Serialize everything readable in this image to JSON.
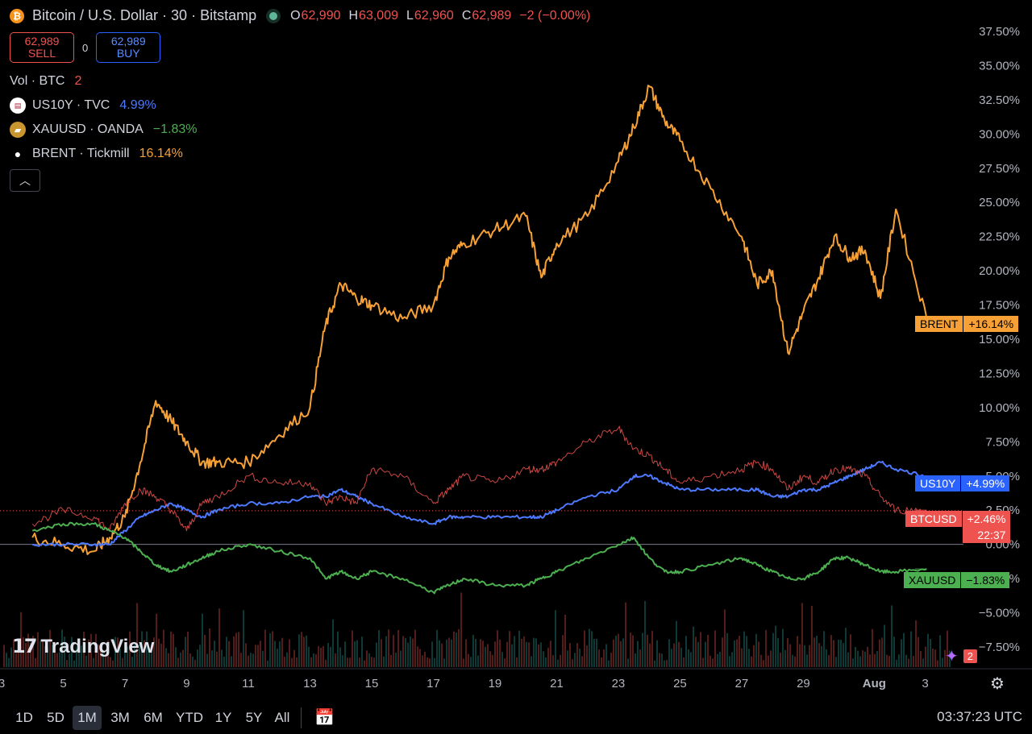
{
  "header": {
    "symbol_icon": "bitcoin-icon",
    "title": "Bitcoin / U.S. Dollar · 30 · Bitstamp",
    "open_label": "O",
    "open": "62,990",
    "high_label": "H",
    "high": "63,009",
    "low_label": "L",
    "low": "62,960",
    "close_label": "C",
    "close": "62,989",
    "change": "−2 (−0.00%)"
  },
  "trade": {
    "sell_price": "62,989",
    "sell_label": "SELL",
    "spread": "0",
    "buy_price": "62,989",
    "buy_label": "BUY"
  },
  "legend": {
    "volume": {
      "label": "Vol · BTC",
      "value": "2"
    },
    "series": [
      {
        "label": "US10Y · TVC",
        "value": "4.99%",
        "color": "#4d79ff",
        "icon": "us-flag-icon"
      },
      {
        "label": "XAUUSD · OANDA",
        "value": "−1.83%",
        "color": "#4caf50",
        "icon": "gold-bars-icon"
      },
      {
        "label": "BRENT · Tickmill",
        "value": "16.14%",
        "color": "#f7a035",
        "icon": "oil-drop-icon"
      }
    ]
  },
  "price_tags": [
    {
      "name": "BRENT",
      "value": "+16.14%",
      "color": "#f7a035",
      "text_color": "#000"
    },
    {
      "name": "US10Y",
      "value": "+4.99%",
      "color": "#2962ff",
      "text_color": "#fff"
    },
    {
      "name": "BTCUSD",
      "value": "+2.46%",
      "sub": "22:37",
      "color": "#ef5350",
      "text_color": "#fff"
    },
    {
      "name": "XAUUSD",
      "value": "−1.83%",
      "color": "#4caf50",
      "text_color": "#000"
    }
  ],
  "chart_data": {
    "type": "line",
    "y_axis_unit": "%",
    "ylim": [
      -8.5,
      38.5
    ],
    "y_ticks": [
      "37.50%",
      "35.00%",
      "32.50%",
      "30.00%",
      "27.50%",
      "25.00%",
      "22.50%",
      "20.00%",
      "17.50%",
      "15.00%",
      "12.50%",
      "10.00%",
      "7.50%",
      "5.00%",
      "2.50%",
      "0.00%",
      "−2.50%",
      "−5.00%",
      "−7.50%"
    ],
    "x_ticks": [
      "3",
      "5",
      "7",
      "9",
      "11",
      "13",
      "15",
      "17",
      "19",
      "21",
      "23",
      "25",
      "27",
      "29",
      "Aug",
      "3"
    ],
    "x": [
      4,
      5,
      6,
      6.5,
      7,
      7.5,
      8,
      8.5,
      9,
      9.5,
      10,
      11,
      12,
      13,
      13.5,
      14,
      14.5,
      15,
      16,
      17,
      17.5,
      18,
      19,
      20,
      20.5,
      21,
      22,
      23,
      23.5,
      24,
      24.5,
      25,
      26,
      27,
      27.5,
      28,
      28.5,
      29,
      29.5,
      30,
      30.5,
      31,
      31.5,
      32,
      33
    ],
    "series": [
      {
        "name": "BRENT",
        "color": "#f7a035",
        "values": [
          0.5,
          0,
          -0.5,
          0.5,
          2,
          6,
          10.5,
          9,
          7.5,
          6,
          6,
          6,
          8,
          10,
          16,
          19,
          18,
          17.5,
          16.5,
          17.5,
          21,
          22,
          23,
          24,
          19.5,
          22,
          24,
          28,
          30.5,
          33.5,
          31,
          29.5,
          26,
          22.5,
          19,
          20,
          14,
          17,
          19.5,
          22.5,
          21,
          21.5,
          18,
          24.5,
          16.5
        ]
      },
      {
        "name": "US10Y",
        "color": "#4d79ff",
        "values": [
          0,
          0,
          0,
          0,
          1,
          2,
          2.5,
          3,
          2.5,
          2,
          2.5,
          3,
          3,
          3.5,
          3.5,
          4,
          3.5,
          3,
          2,
          1.5,
          2,
          2,
          2,
          2,
          2,
          2.5,
          3.5,
          4,
          5,
          5,
          4.5,
          4,
          4,
          4,
          4,
          3.5,
          3.5,
          4,
          4,
          4.5,
          5,
          5.5,
          6,
          5.5,
          5
        ]
      },
      {
        "name": "BTCUSD",
        "color": "#ef5350",
        "values": [
          1.5,
          2.5,
          2,
          1,
          3,
          4,
          3.5,
          2.5,
          1,
          3,
          3.5,
          5,
          4.5,
          4.5,
          3,
          3.5,
          3,
          5.5,
          5,
          3,
          4,
          5,
          4.5,
          5.5,
          5.5,
          6,
          7.5,
          8.5,
          7,
          6.5,
          5.5,
          4.5,
          5,
          5.5,
          6,
          5.5,
          4,
          5,
          4.5,
          5.5,
          5.5,
          5,
          3.5,
          2.5,
          2.5
        ]
      },
      {
        "name": "XAUUSD",
        "color": "#4caf50",
        "values": [
          1,
          1.5,
          1.5,
          1,
          0.5,
          -0.5,
          -1.5,
          -2,
          -1.5,
          -1,
          -0.5,
          0,
          -0.5,
          -1,
          -2.5,
          -2,
          -2.5,
          -2,
          -2.5,
          -3.5,
          -3,
          -2.5,
          -3,
          -3,
          -2.5,
          -2,
          -1,
          0,
          0.5,
          -1,
          -2,
          -2,
          -1.5,
          -1,
          -1.5,
          -2,
          -2.5,
          -2.5,
          -2,
          -1,
          -1,
          -1.5,
          -2,
          -2,
          -1.8
        ]
      }
    ]
  },
  "bottom": {
    "ranges": [
      "1D",
      "5D",
      "1M",
      "3M",
      "6M",
      "YTD",
      "1Y",
      "5Y",
      "All"
    ],
    "active_range": "1M",
    "clock": "03:37:23 UTC"
  },
  "watermark": "TradingView",
  "alerts_badge": "2"
}
